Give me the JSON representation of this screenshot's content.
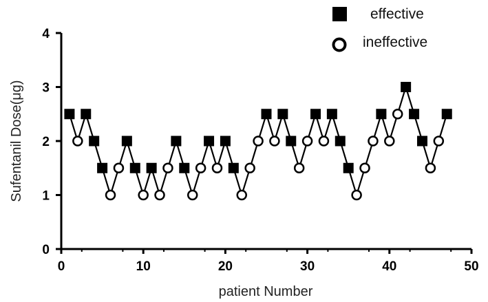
{
  "chart_data": {
    "type": "line",
    "xlabel": "patient Number",
    "ylabel": "Sufentanil Dose(μg)",
    "xlim": [
      0,
      50
    ],
    "ylim": [
      0,
      4
    ],
    "xticks": [
      "0",
      "10",
      "20",
      "30",
      "40",
      "50"
    ],
    "yticks": [
      "0",
      "1",
      "2",
      "3",
      "4"
    ],
    "grid": false,
    "legend": {
      "placement": "top-right",
      "entries": [
        {
          "label": "effective",
          "marker": "filled-square"
        },
        {
          "label": "ineffective",
          "marker": "open-circle"
        }
      ]
    },
    "series": [
      {
        "x": [
          1,
          2,
          3,
          4,
          5,
          6,
          7,
          8,
          9,
          10,
          11,
          12,
          13,
          14,
          15,
          16,
          17,
          18,
          19,
          20,
          21,
          22,
          23,
          24,
          25,
          26,
          27,
          28,
          29,
          30,
          31,
          32,
          33,
          34,
          35,
          36,
          37,
          38,
          39,
          40,
          41,
          42,
          43,
          44,
          45,
          46,
          47
        ],
        "y": [
          2.5,
          2,
          2.5,
          2,
          1.5,
          1,
          1.5,
          2,
          1.5,
          1,
          1.5,
          1,
          1.5,
          2,
          1.5,
          1,
          1.5,
          2,
          1.5,
          2,
          1.5,
          1,
          1.5,
          2,
          2.5,
          2,
          2.5,
          2,
          1.5,
          2,
          2.5,
          2,
          2.5,
          2,
          1.5,
          1,
          1.5,
          2,
          2.5,
          2,
          2.5,
          3,
          2.5,
          2,
          1.5,
          2,
          2.5
        ],
        "outcome": [
          "effective",
          "ineffective",
          "effective",
          "effective",
          "effective",
          "ineffective",
          "ineffective",
          "effective",
          "effective",
          "ineffective",
          "effective",
          "ineffective",
          "ineffective",
          "effective",
          "effective",
          "ineffective",
          "ineffective",
          "effective",
          "ineffective",
          "effective",
          "effective",
          "ineffective",
          "ineffective",
          "ineffective",
          "effective",
          "ineffective",
          "effective",
          "effective",
          "ineffective",
          "ineffective",
          "effective",
          "ineffective",
          "effective",
          "effective",
          "effective",
          "ineffective",
          "ineffective",
          "ineffective",
          "effective",
          "ineffective",
          "ineffective",
          "effective",
          "effective",
          "effective",
          "ineffective",
          "ineffective",
          "effective"
        ]
      }
    ]
  },
  "colors": {
    "line": "#000000",
    "effective_fill": "#000000",
    "ineffective_fill": "#ffffff"
  }
}
